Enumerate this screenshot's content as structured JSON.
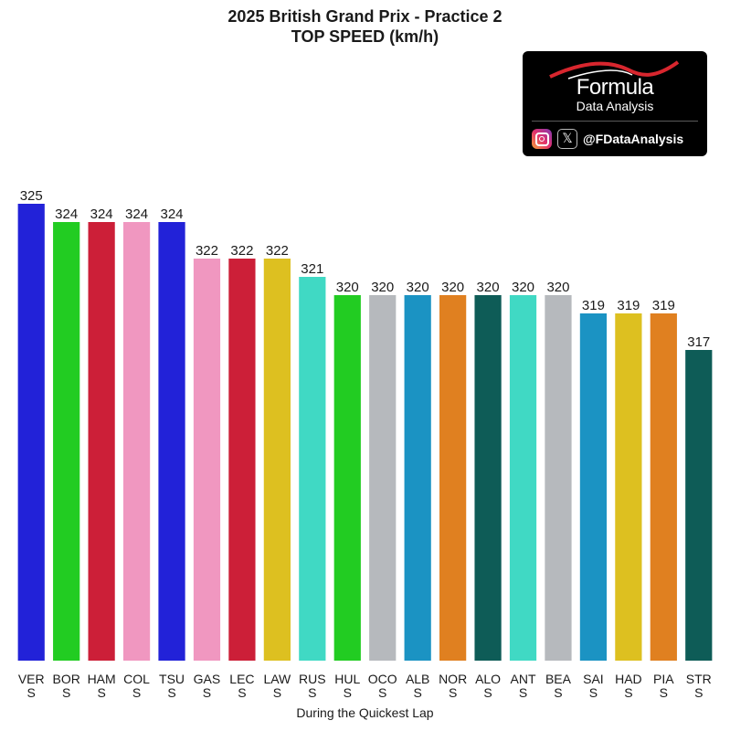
{
  "chart_data": {
    "type": "bar",
    "title": "2025 British Grand Prix - Practice 2",
    "subtitle": "TOP SPEED (km/h)",
    "xlabel": "During the Quickest Lap",
    "ylabel": "",
    "ylim": [
      300,
      325
    ],
    "grid": false,
    "categories": [
      "VER\nS",
      "BOR\nS",
      "HAM\nS",
      "COL\nS",
      "TSU\nS",
      "GAS\nS",
      "LEC\nS",
      "LAW\nS",
      "RUS\nS",
      "HUL\nS",
      "OCO\nS",
      "ALB\nS",
      "NOR\nS",
      "ALO\nS",
      "ANT\nS",
      "BEA\nS",
      "SAI\nS",
      "HAD\nS",
      "PIA\nS",
      "STR\nS"
    ],
    "values": [
      325,
      324,
      324,
      324,
      324,
      322,
      322,
      322,
      321,
      320,
      320,
      320,
      320,
      320,
      320,
      320,
      319,
      319,
      319,
      317
    ],
    "colors": [
      "#2222d8",
      "#22cc22",
      "#cc1f38",
      "#f097c0",
      "#2222d8",
      "#f097c0",
      "#cc1f38",
      "#ddc020",
      "#40d9c4",
      "#22cc22",
      "#b6b9bd",
      "#1b93c3",
      "#e08020",
      "#0e5c57",
      "#40d9c4",
      "#b6b9bd",
      "#1b93c3",
      "#ddc020",
      "#e08020",
      "#0e5c57"
    ]
  },
  "logo": {
    "brand": "Formula",
    "sub": "Data Analysis",
    "handle": "@FDataAnalysis",
    "icons": [
      "instagram-icon",
      "x-icon"
    ]
  }
}
